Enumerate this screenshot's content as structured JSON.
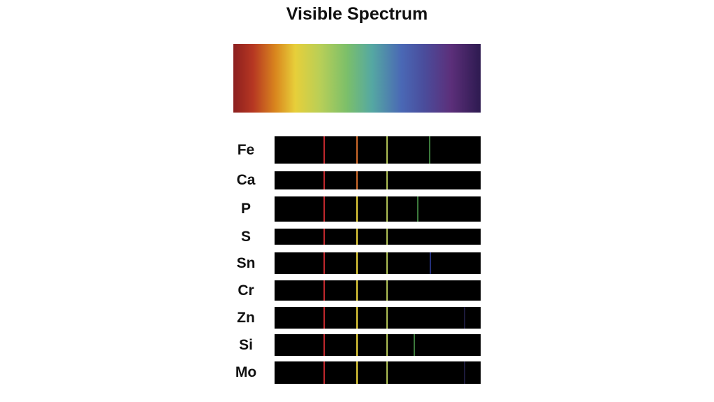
{
  "title": "Visible Spectrum",
  "line_colors": {
    "red": "#c0282d",
    "orange": "#d06a2a",
    "yellow": "#e8d23a",
    "yellow_green": "#aebf54",
    "green": "#3c7a3c",
    "blue": "#24307a",
    "violet": "#1c1a3a"
  },
  "elements": [
    {
      "symbol": "Fe",
      "lines": [
        "red",
        "orange",
        "yellow_green",
        "green"
      ]
    },
    {
      "symbol": "Ca",
      "lines": [
        "red",
        "orange",
        "yellow_green"
      ]
    },
    {
      "symbol": "P",
      "lines": [
        "red",
        "yellow",
        "yellow_green",
        "green"
      ]
    },
    {
      "symbol": "S",
      "lines": [
        "red",
        "yellow",
        "yellow_green"
      ]
    },
    {
      "symbol": "Sn",
      "lines": [
        "red",
        "yellow",
        "yellow_green",
        "blue"
      ]
    },
    {
      "symbol": "Cr",
      "lines": [
        "red",
        "yellow",
        "yellow_green"
      ]
    },
    {
      "symbol": "Zn",
      "lines": [
        "red",
        "yellow",
        "yellow_green",
        "violet"
      ]
    },
    {
      "symbol": "Si",
      "lines": [
        "red",
        "yellow",
        "yellow_green",
        "green"
      ]
    },
    {
      "symbol": "Mo",
      "lines": [
        "red",
        "yellow",
        "yellow_green",
        "violet"
      ]
    }
  ]
}
